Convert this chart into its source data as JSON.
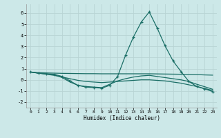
{
  "bg_color": "#cce8e8",
  "grid_color": "#b8d4d4",
  "line_color": "#1a6e66",
  "xlabel": "Humidex (Indice chaleur)",
  "ylim": [
    -2.5,
    6.8
  ],
  "xlim": [
    -0.5,
    23.5
  ],
  "yticks": [
    -2,
    -1,
    0,
    1,
    2,
    3,
    4,
    5,
    6
  ],
  "xticks": [
    0,
    1,
    2,
    3,
    4,
    5,
    6,
    7,
    8,
    9,
    10,
    11,
    12,
    13,
    14,
    15,
    16,
    17,
    18,
    19,
    20,
    21,
    22,
    23
  ],
  "series": [
    {
      "x": [
        0,
        1,
        2,
        3,
        4,
        5,
        6,
        7,
        8,
        9,
        10,
        11,
        12,
        13,
        14,
        15,
        16,
        17,
        18,
        19,
        20,
        21,
        22,
        23
      ],
      "y": [
        0.7,
        0.65,
        0.62,
        0.6,
        0.58,
        0.57,
        0.56,
        0.55,
        0.55,
        0.54,
        0.54,
        0.54,
        0.54,
        0.54,
        0.54,
        0.54,
        0.53,
        0.52,
        0.51,
        0.5,
        0.49,
        0.47,
        0.44,
        0.42
      ],
      "marker": false
    },
    {
      "x": [
        0,
        1,
        2,
        3,
        4,
        5,
        6,
        7,
        8,
        9,
        10,
        11,
        12,
        13,
        14,
        15,
        16,
        17,
        18,
        19,
        20,
        21,
        22,
        23
      ],
      "y": [
        0.7,
        0.6,
        0.55,
        0.5,
        0.3,
        -0.1,
        -0.5,
        -0.65,
        -0.7,
        -0.75,
        -0.5,
        0.3,
        2.2,
        3.85,
        5.2,
        6.1,
        4.65,
        3.05,
        1.7,
        0.75,
        -0.15,
        -0.6,
        -0.82,
        -1.05
      ],
      "marker": true
    },
    {
      "x": [
        0,
        1,
        2,
        3,
        4,
        5,
        6,
        7,
        8,
        9,
        10,
        11,
        12,
        13,
        14,
        15,
        16,
        17,
        18,
        19,
        20,
        21,
        22,
        23
      ],
      "y": [
        0.7,
        0.6,
        0.5,
        0.4,
        0.25,
        0.1,
        -0.05,
        -0.15,
        -0.2,
        -0.25,
        -0.2,
        -0.15,
        -0.1,
        -0.05,
        0.0,
        0.0,
        -0.05,
        -0.1,
        -0.2,
        -0.3,
        -0.45,
        -0.6,
        -0.78,
        -0.95
      ],
      "marker": false
    },
    {
      "x": [
        0,
        1,
        2,
        3,
        4,
        5,
        6,
        7,
        8,
        9,
        10,
        11,
        12,
        13,
        14,
        15,
        16,
        17,
        18,
        19,
        20,
        21,
        22,
        23
      ],
      "y": [
        0.7,
        0.6,
        0.52,
        0.45,
        0.2,
        -0.2,
        -0.5,
        -0.6,
        -0.65,
        -0.7,
        -0.4,
        -0.1,
        0.1,
        0.25,
        0.35,
        0.4,
        0.3,
        0.2,
        0.1,
        0.0,
        -0.15,
        -0.4,
        -0.62,
        -0.85
      ],
      "marker": false
    }
  ]
}
